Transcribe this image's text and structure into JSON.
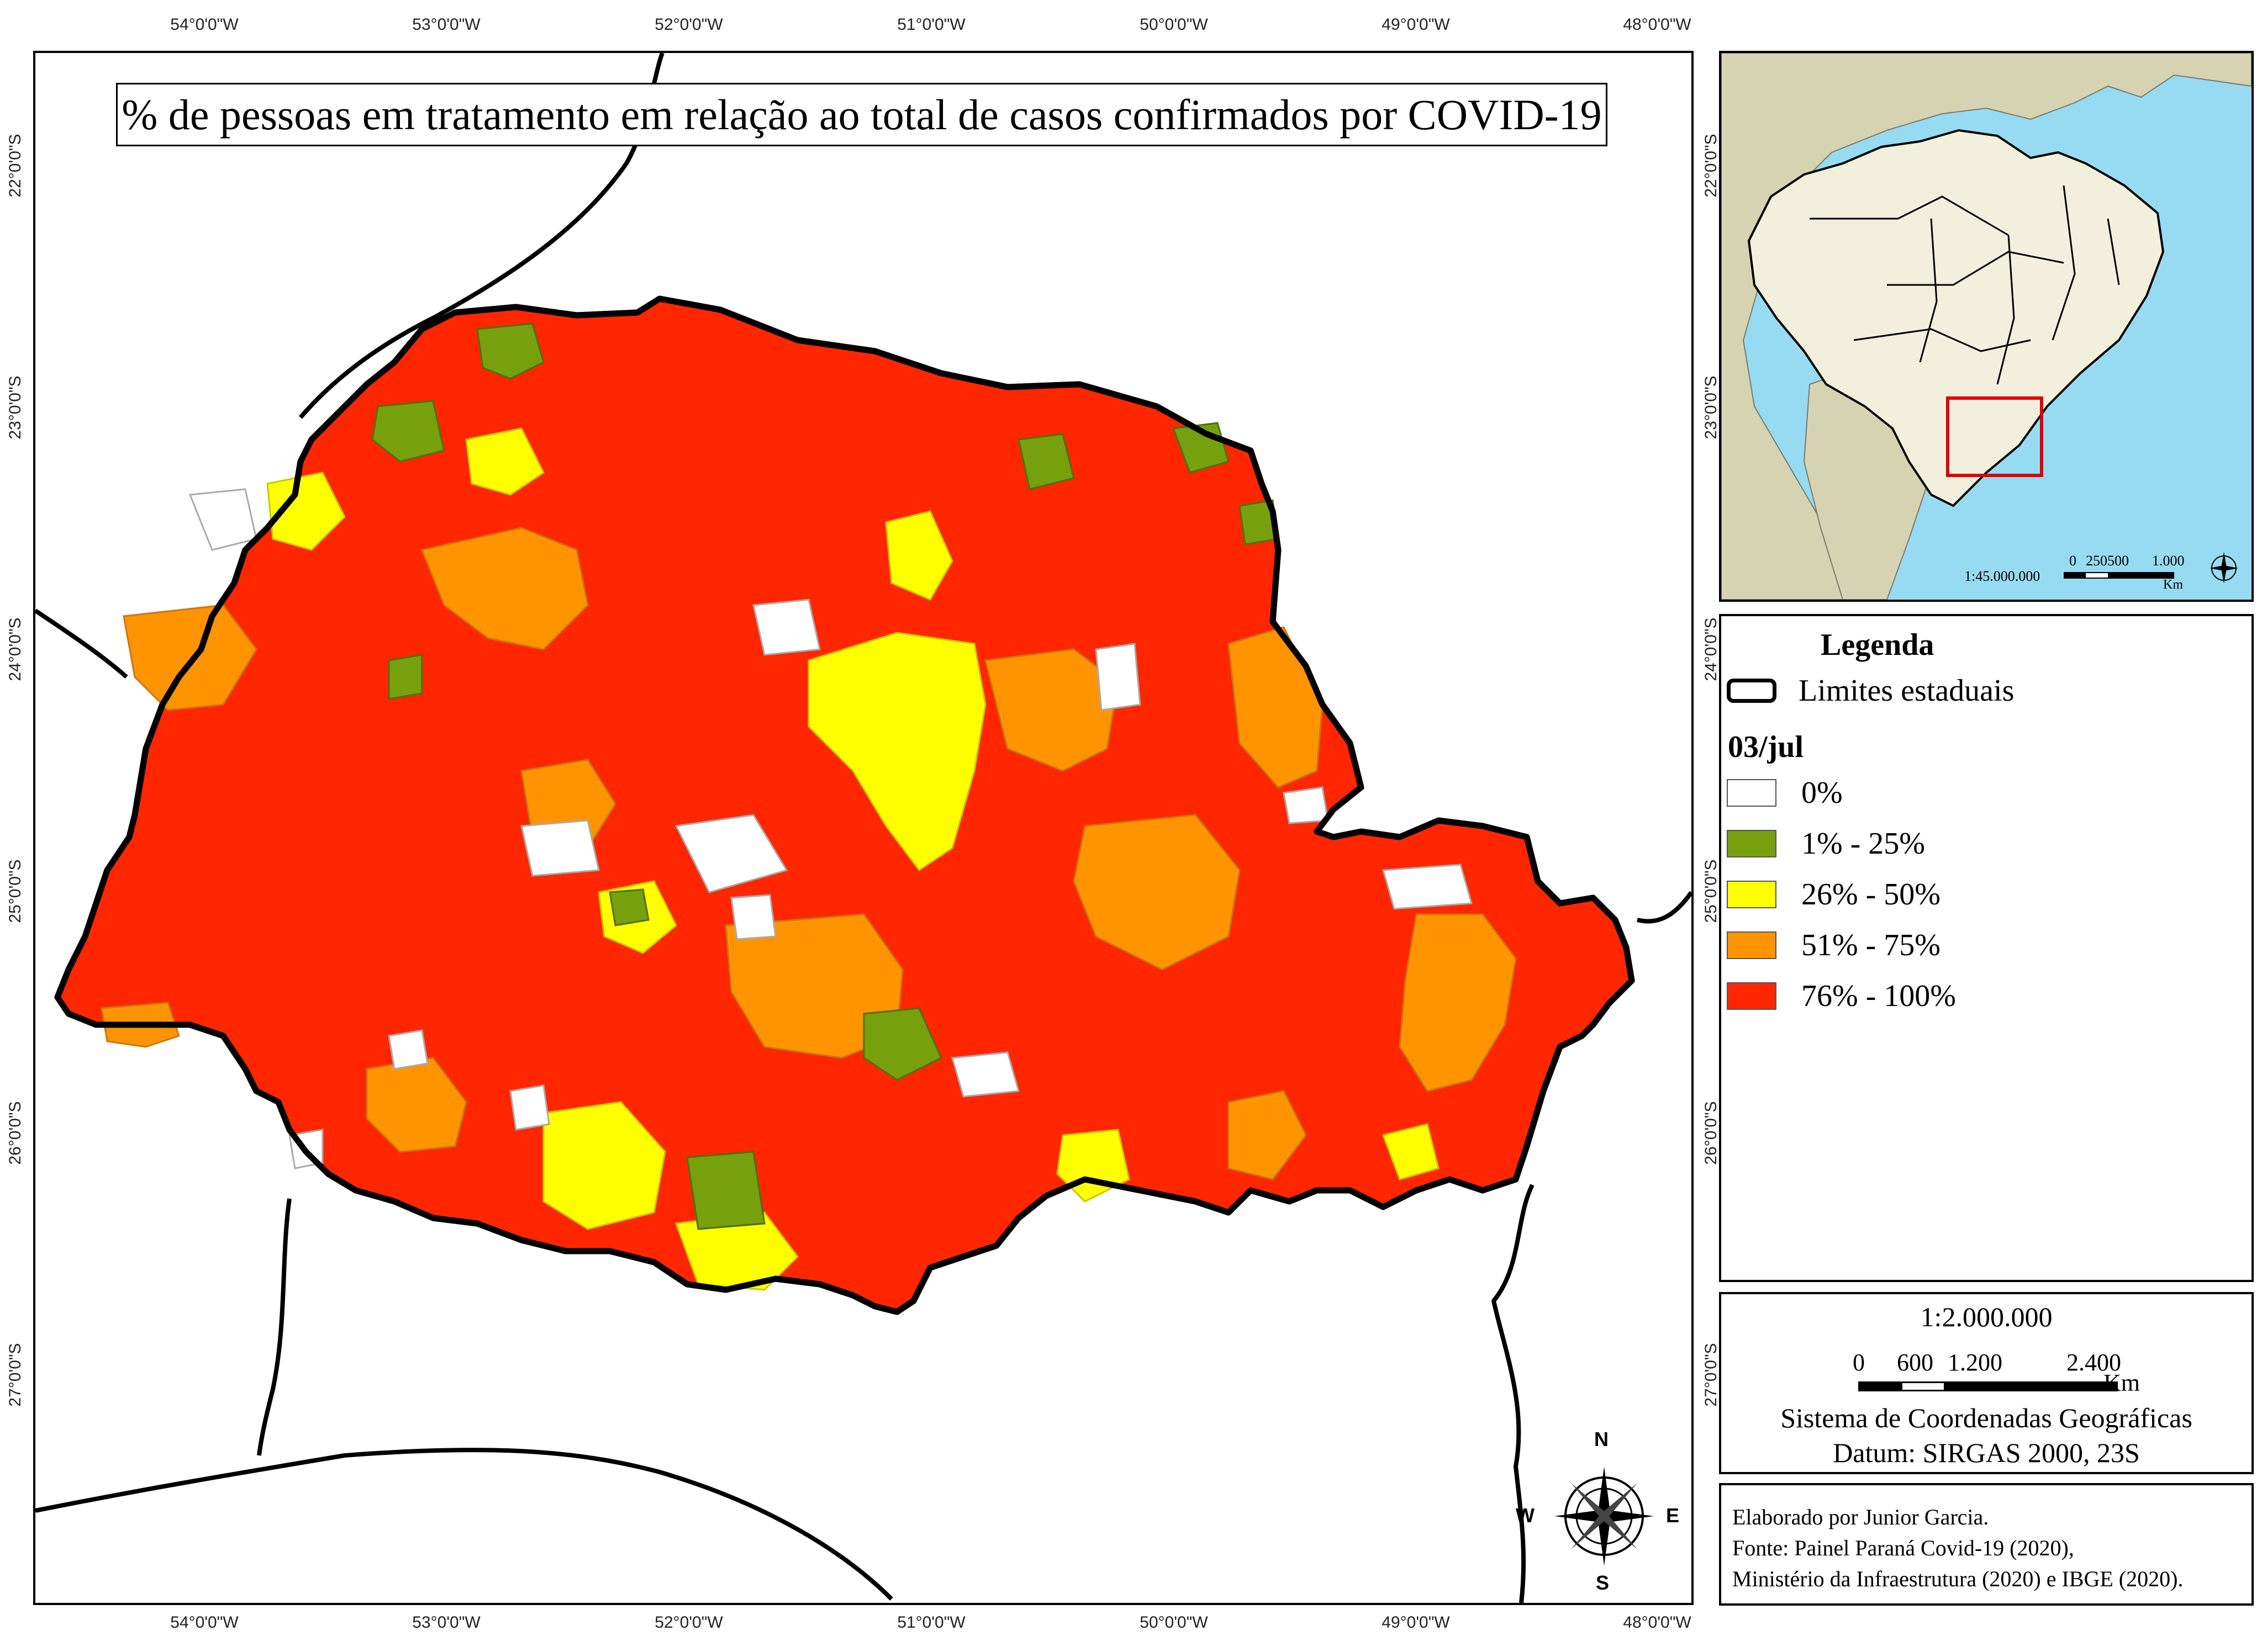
{
  "title": "% de pessoas em tratamento em relação ao total de casos confirmados por COVID-19",
  "longitude_labels": [
    "54°0'0\"W",
    "53°0'0\"W",
    "52°0'0\"W",
    "51°0'0\"W",
    "50°0'0\"W",
    "49°0'0\"W",
    "48°0'0\"W"
  ],
  "latitude_labels": [
    "22°0'0\"S",
    "23°0'0\"S",
    "24°0'0\"S",
    "25°0'0\"S",
    "26°0'0\"S",
    "27°0'0\"S"
  ],
  "inset": {
    "scale": "1:45.000.000",
    "scalebar_labels": [
      "0",
      "250500",
      "1.000"
    ],
    "scalebar_unit": "Km"
  },
  "legend": {
    "title": "Legenda",
    "boundary_label": "Limites estaduais",
    "date_label": "03/jul",
    "classes": [
      {
        "label": "0%",
        "color": "#ffffff"
      },
      {
        "label": "1% - 25%",
        "color": "#76a00e"
      },
      {
        "label": "26% - 50%",
        "color": "#ffff00"
      },
      {
        "label": "51% - 75%",
        "color": "#ff9400"
      },
      {
        "label": "76% - 100%",
        "color": "#ff2600"
      }
    ]
  },
  "scale_box": {
    "scale": "1:2.000.000",
    "bar_labels": [
      "0",
      "600",
      "1.200",
      "2.400"
    ],
    "unit": "Km",
    "crs": "Sistema de Coordenadas Geográficas",
    "datum": "Datum: SIRGAS 2000, 23S"
  },
  "credits": [
    "Elaborado por Junior Garcia.",
    "Fonte: Painel Paraná Covid-19 (2020),",
    "Ministério da Infraestrutura (2020) e IBGE (2020)."
  ],
  "compass": {
    "n": "N",
    "s": "S",
    "e": "E",
    "w": "W"
  },
  "colors": {
    "ocean": "#97dbf2",
    "land_other": "#d6d3b2",
    "brazil": "#f2f0dc",
    "inset_box": "#e00000"
  }
}
